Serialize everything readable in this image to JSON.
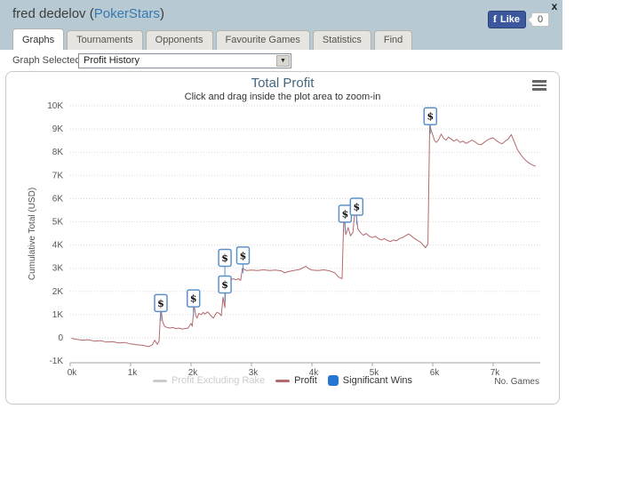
{
  "header": {
    "title_prefix": "fred dedelov (",
    "site": "PokerStars",
    "title_suffix": ")",
    "like_label": "Like",
    "fb_logo": "f",
    "like_count": "0",
    "close_label": "x"
  },
  "tabs": [
    {
      "label": "Graphs",
      "active": true
    },
    {
      "label": "Tournaments",
      "active": false
    },
    {
      "label": "Opponents",
      "active": false
    },
    {
      "label": "Favourite Games",
      "active": false
    },
    {
      "label": "Statistics",
      "active": false
    },
    {
      "label": "Find",
      "active": false
    }
  ],
  "graph_selector": {
    "label": "Graph Selected:",
    "selected": "Profit History",
    "arrow": "▼"
  },
  "chart_data": {
    "type": "line",
    "title": "Total Profit",
    "subtitle": "Click and drag inside the plot area to zoom-in",
    "ylabel": "Cumulative Total (USD)",
    "xlabel": "No. Games",
    "grid": "dotted horizontal",
    "legend_position": "bottom-center",
    "xlim_games": [
      0,
      7700
    ],
    "ylim_usd": [
      -1000,
      10000
    ],
    "yticks": [
      {
        "v": 10,
        "label": "10K"
      },
      {
        "v": 9,
        "label": "9K"
      },
      {
        "v": 8,
        "label": "8K"
      },
      {
        "v": 7,
        "label": "7K"
      },
      {
        "v": 6,
        "label": "6K"
      },
      {
        "v": 5,
        "label": "5K"
      },
      {
        "v": 4,
        "label": "4K"
      },
      {
        "v": 3,
        "label": "3K"
      },
      {
        "v": 2,
        "label": "2K"
      },
      {
        "v": 1,
        "label": "1K"
      },
      {
        "v": 0,
        "label": "0"
      },
      {
        "v": -1,
        "label": "-1K"
      }
    ],
    "xticks": [
      {
        "v": 0,
        "label": "0k"
      },
      {
        "v": 1,
        "label": "1k"
      },
      {
        "v": 2,
        "label": "2k"
      },
      {
        "v": 3,
        "label": "3k"
      },
      {
        "v": 4,
        "label": "4k"
      },
      {
        "v": 5,
        "label": "5k"
      },
      {
        "v": 6,
        "label": "6k"
      },
      {
        "v": 7,
        "label": "7k"
      }
    ],
    "legend": [
      {
        "label": "Profit Excluding Rake",
        "type": "line",
        "color": "#cccccc",
        "disabled": true
      },
      {
        "label": "Profit",
        "type": "line",
        "color": "#b4696b",
        "disabled": false
      },
      {
        "label": "Significant Wins",
        "type": "flag",
        "color": "#2575d4",
        "disabled": false
      }
    ],
    "flag_symbol": "$",
    "series": [
      {
        "name": "Profit",
        "color": "#b4696b",
        "units": "[thousand games, thousand USD]",
        "points": [
          [
            0.02,
            -0.02
          ],
          [
            0.1,
            -0.06
          ],
          [
            0.2,
            -0.1
          ],
          [
            0.3,
            -0.08
          ],
          [
            0.4,
            -0.14
          ],
          [
            0.5,
            -0.12
          ],
          [
            0.6,
            -0.18
          ],
          [
            0.7,
            -0.16
          ],
          [
            0.8,
            -0.22
          ],
          [
            0.9,
            -0.2
          ],
          [
            1.0,
            -0.26
          ],
          [
            1.1,
            -0.3
          ],
          [
            1.2,
            -0.32
          ],
          [
            1.3,
            -0.38
          ],
          [
            1.36,
            -0.3
          ],
          [
            1.4,
            -0.1
          ],
          [
            1.44,
            -0.28
          ],
          [
            1.47,
            -0.15
          ],
          [
            1.5,
            1.33
          ],
          [
            1.53,
            0.7
          ],
          [
            1.56,
            0.5
          ],
          [
            1.6,
            0.45
          ],
          [
            1.65,
            0.42
          ],
          [
            1.7,
            0.45
          ],
          [
            1.75,
            0.4
          ],
          [
            1.8,
            0.42
          ],
          [
            1.85,
            0.38
          ],
          [
            1.9,
            0.4
          ],
          [
            1.95,
            0.42
          ],
          [
            2.0,
            0.62
          ],
          [
            2.02,
            0.5
          ],
          [
            2.05,
            1.4
          ],
          [
            2.08,
            0.95
          ],
          [
            2.1,
            0.85
          ],
          [
            2.13,
            1.05
          ],
          [
            2.17,
            1.0
          ],
          [
            2.2,
            1.1
          ],
          [
            2.23,
            1.02
          ],
          [
            2.27,
            1.12
          ],
          [
            2.3,
            1.05
          ],
          [
            2.33,
            0.95
          ],
          [
            2.37,
            0.85
          ],
          [
            2.4,
            1.0
          ],
          [
            2.43,
            1.1
          ],
          [
            2.47,
            1.05
          ],
          [
            2.5,
            0.95
          ],
          [
            2.53,
            1.75
          ],
          [
            2.56,
            1.3
          ],
          [
            2.58,
            2.5
          ],
          [
            2.62,
            2.55
          ],
          [
            2.66,
            2.5
          ],
          [
            2.7,
            2.55
          ],
          [
            2.74,
            2.5
          ],
          [
            2.78,
            2.55
          ],
          [
            2.82,
            2.48
          ],
          [
            2.85,
            3.0
          ],
          [
            2.88,
            2.95
          ],
          [
            2.92,
            2.9
          ],
          [
            3.0,
            2.92
          ],
          [
            3.1,
            2.9
          ],
          [
            3.2,
            2.93
          ],
          [
            3.3,
            2.9
          ],
          [
            3.4,
            2.92
          ],
          [
            3.5,
            2.88
          ],
          [
            3.55,
            2.8
          ],
          [
            3.6,
            2.85
          ],
          [
            3.7,
            2.9
          ],
          [
            3.8,
            2.95
          ],
          [
            3.9,
            3.08
          ],
          [
            3.95,
            2.98
          ],
          [
            4.0,
            2.92
          ],
          [
            4.1,
            2.9
          ],
          [
            4.2,
            2.93
          ],
          [
            4.3,
            2.88
          ],
          [
            4.38,
            2.8
          ],
          [
            4.44,
            2.62
          ],
          [
            4.5,
            2.55
          ],
          [
            4.53,
            5.3
          ],
          [
            4.56,
            4.45
          ],
          [
            4.6,
            4.75
          ],
          [
            4.64,
            4.4
          ],
          [
            4.68,
            4.55
          ],
          [
            4.72,
            5.7
          ],
          [
            4.76,
            4.7
          ],
          [
            4.8,
            4.55
          ],
          [
            4.85,
            4.42
          ],
          [
            4.9,
            4.5
          ],
          [
            4.95,
            4.38
          ],
          [
            5.0,
            4.32
          ],
          [
            5.05,
            4.38
          ],
          [
            5.1,
            4.28
          ],
          [
            5.15,
            4.22
          ],
          [
            5.2,
            4.28
          ],
          [
            5.25,
            4.2
          ],
          [
            5.3,
            4.15
          ],
          [
            5.35,
            4.22
          ],
          [
            5.4,
            4.18
          ],
          [
            5.45,
            4.28
          ],
          [
            5.5,
            4.32
          ],
          [
            5.55,
            4.4
          ],
          [
            5.6,
            4.48
          ],
          [
            5.65,
            4.38
          ],
          [
            5.7,
            4.28
          ],
          [
            5.75,
            4.2
          ],
          [
            5.8,
            4.12
          ],
          [
            5.85,
            3.98
          ],
          [
            5.88,
            3.88
          ],
          [
            5.92,
            4.05
          ],
          [
            5.95,
            9.2
          ],
          [
            5.98,
            8.9
          ],
          [
            6.0,
            8.75
          ],
          [
            6.03,
            8.5
          ],
          [
            6.06,
            8.42
          ],
          [
            6.1,
            8.55
          ],
          [
            6.14,
            8.78
          ],
          [
            6.18,
            8.6
          ],
          [
            6.22,
            8.52
          ],
          [
            6.26,
            8.65
          ],
          [
            6.3,
            8.58
          ],
          [
            6.35,
            8.48
          ],
          [
            6.4,
            8.55
          ],
          [
            6.45,
            8.42
          ],
          [
            6.5,
            8.48
          ],
          [
            6.55,
            8.38
          ],
          [
            6.6,
            8.45
          ],
          [
            6.65,
            8.52
          ],
          [
            6.7,
            8.45
          ],
          [
            6.75,
            8.35
          ],
          [
            6.8,
            8.32
          ],
          [
            6.85,
            8.42
          ],
          [
            6.9,
            8.52
          ],
          [
            6.95,
            8.58
          ],
          [
            7.0,
            8.62
          ],
          [
            7.05,
            8.5
          ],
          [
            7.1,
            8.42
          ],
          [
            7.15,
            8.36
          ],
          [
            7.2,
            8.48
          ],
          [
            7.25,
            8.58
          ],
          [
            7.3,
            8.76
          ],
          [
            7.35,
            8.45
          ],
          [
            7.4,
            8.12
          ],
          [
            7.45,
            7.92
          ],
          [
            7.5,
            7.75
          ],
          [
            7.55,
            7.62
          ],
          [
            7.6,
            7.52
          ],
          [
            7.65,
            7.45
          ],
          [
            7.7,
            7.4
          ]
        ]
      }
    ],
    "significant_wins": [
      {
        "x": 1.5,
        "y": 1.5
      },
      {
        "x": 2.04,
        "y": 1.7
      },
      {
        "x": 2.56,
        "y": 2.3
      },
      {
        "x": 2.56,
        "y": 3.45
      },
      {
        "x": 2.86,
        "y": 3.55
      },
      {
        "x": 4.55,
        "y": 5.35
      },
      {
        "x": 4.74,
        "y": 5.65
      },
      {
        "x": 5.96,
        "y": 9.55
      }
    ],
    "colors": {
      "profit_line": "#b4696b",
      "flag_border": "#5c90c8",
      "significant_wins_swatch": "#2575d4",
      "title": "#44677f",
      "header_bg": "#b7c9d3",
      "grid": "#d9d9d9"
    }
  }
}
